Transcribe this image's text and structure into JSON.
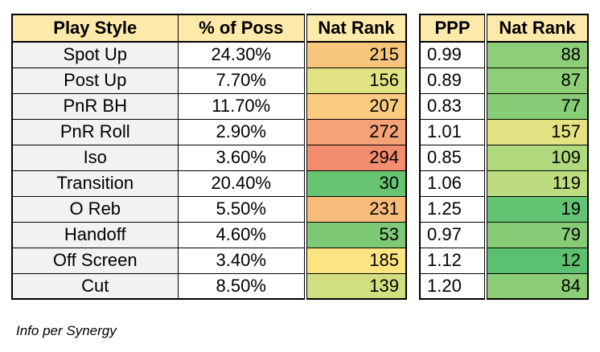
{
  "left_table": {
    "headers": [
      "Play Style",
      "% of Poss",
      "Nat Rank"
    ],
    "rows": [
      {
        "play": "Spot Up",
        "pct": "24.30%",
        "rank": "215",
        "color": "#f8c57d"
      },
      {
        "play": "Post Up",
        "pct": "7.70%",
        "rank": "156",
        "color": "#e2e383"
      },
      {
        "play": "PnR BH",
        "pct": "11.70%",
        "rank": "207",
        "color": "#fbcc7f"
      },
      {
        "play": "PnR Roll",
        "pct": "2.90%",
        "rank": "272",
        "color": "#f4a276"
      },
      {
        "play": "Iso",
        "pct": "3.60%",
        "rank": "294",
        "color": "#f28e6e"
      },
      {
        "play": "Transition",
        "pct": "20.40%",
        "rank": "30",
        "color": "#67c473"
      },
      {
        "play": "O Reb",
        "pct": "5.50%",
        "rank": "231",
        "color": "#f7bb7a"
      },
      {
        "play": "Handoff",
        "pct": "4.60%",
        "rank": "53",
        "color": "#7ec975"
      },
      {
        "play": "Off Screen",
        "pct": "3.40%",
        "rank": "185",
        "color": "#fde483"
      },
      {
        "play": "Cut",
        "pct": "8.50%",
        "rank": "139",
        "color": "#d2df80"
      }
    ]
  },
  "right_table": {
    "headers": [
      "PPP",
      "Nat Rank"
    ],
    "rows": [
      {
        "ppp": "0.99",
        "rank": "88",
        "color": "#8fce79"
      },
      {
        "ppp": "0.89",
        "rank": "87",
        "color": "#8fce79"
      },
      {
        "ppp": "0.83",
        "rank": "77",
        "color": "#87cc77"
      },
      {
        "ppp": "1.01",
        "rank": "157",
        "color": "#e3e383"
      },
      {
        "ppp": "0.85",
        "rank": "109",
        "color": "#b0d87d"
      },
      {
        "ppp": "1.06",
        "rank": "119",
        "color": "#bcdc7f"
      },
      {
        "ppp": "1.25",
        "rank": "19",
        "color": "#62c372"
      },
      {
        "ppp": "0.97",
        "rank": "79",
        "color": "#87cc77"
      },
      {
        "ppp": "1.12",
        "rank": "12",
        "color": "#5bc070"
      },
      {
        "ppp": "1.20",
        "rank": "84",
        "color": "#8ccd78"
      }
    ]
  },
  "footnote": "Info per Synergy"
}
